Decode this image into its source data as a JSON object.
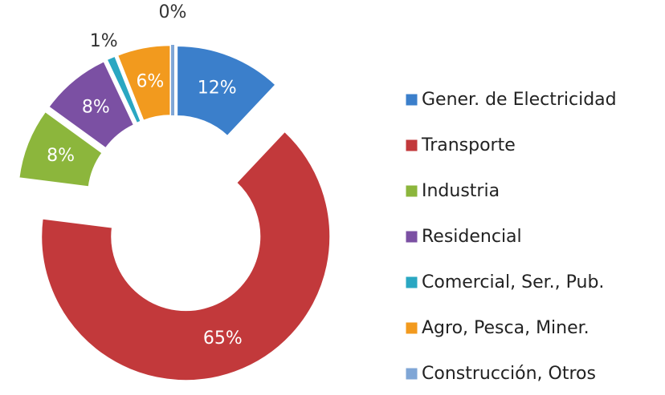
{
  "chart_data": {
    "type": "donut",
    "categories": [
      "Gener. de Electricidad",
      "Transporte",
      "Industria",
      "Residencial",
      "Comercial, Ser., Pub.",
      "Agro, Pesca, Miner.",
      "Construcción, Otros"
    ],
    "values": [
      12,
      65,
      8,
      8,
      1,
      6,
      0
    ],
    "value_labels": [
      "12%",
      "65%",
      "8%",
      "8%",
      "1%",
      "6%",
      "0%"
    ],
    "colors": [
      "#3b7fcb",
      "#c2393b",
      "#8cb63c",
      "#7b50a3",
      "#2aa7c2",
      "#f29a1e",
      "#7fa6d6"
    ],
    "legend": "right"
  }
}
